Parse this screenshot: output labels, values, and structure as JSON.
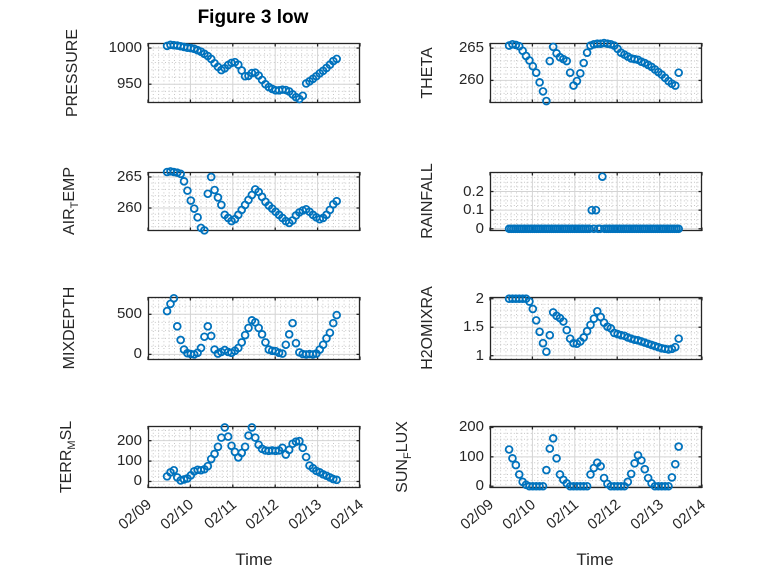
{
  "title": "Figure 3 low",
  "marker_color": "#0072BD",
  "axis_color": "#262626",
  "time_axis": {
    "label": "Time",
    "ticks": [
      "02/09",
      "02/10",
      "02/11",
      "02/12",
      "02/13",
      "02/14"
    ]
  },
  "chart_data": [
    {
      "type": "scatter",
      "name": "PRESSURE",
      "ylabel_pre": "PRESSURE",
      "ylabel_sub": "",
      "ylabel_post": "",
      "row": 0,
      "col": 0,
      "xlim": [
        0,
        5
      ],
      "ylim": [
        924,
        1007
      ],
      "yticks": [
        950,
        1000
      ],
      "y_minor_step": 10,
      "x_minor_step": 0.125,
      "x": [
        0.45,
        0.53,
        0.61,
        0.69,
        0.77,
        0.85,
        0.93,
        1.01,
        1.09,
        1.17,
        1.25,
        1.33,
        1.41,
        1.49,
        1.57,
        1.65,
        1.73,
        1.81,
        1.89,
        1.97,
        2.05,
        2.13,
        2.21,
        2.29,
        2.37,
        2.45,
        2.53,
        2.61,
        2.69,
        2.77,
        2.85,
        2.93,
        3.01,
        3.09,
        3.17,
        3.25,
        3.33,
        3.41,
        3.49,
        3.57,
        3.65,
        3.73,
        3.81,
        3.89,
        3.97,
        4.05,
        4.13,
        4.21,
        4.29,
        4.37,
        4.45
      ],
      "y": [
        1003,
        1004.5,
        1004,
        1003.5,
        1002.5,
        1001.5,
        1000.5,
        1000,
        999,
        997,
        995,
        992,
        989,
        985,
        979,
        974,
        969.5,
        972,
        976.5,
        979.5,
        980.5,
        977,
        969,
        961,
        961.5,
        965.5,
        966,
        962,
        956,
        950,
        946,
        943.5,
        941.5,
        941.5,
        942.5,
        942,
        940,
        936,
        932,
        929.5,
        934,
        951,
        954,
        957.5,
        961,
        965,
        968.5,
        972.5,
        977,
        982,
        985
      ]
    },
    {
      "type": "scatter",
      "name": "THETA",
      "ylabel_pre": "THETA",
      "ylabel_sub": "",
      "ylabel_post": "",
      "row": 0,
      "col": 1,
      "xlim": [
        0,
        5
      ],
      "ylim": [
        256.5,
        265.8
      ],
      "yticks": [
        260,
        265
      ],
      "y_minor_step": 1,
      "x_minor_step": 0.125,
      "x": [
        0.45,
        0.53,
        0.61,
        0.69,
        0.77,
        0.85,
        0.93,
        1.01,
        1.09,
        1.17,
        1.25,
        1.33,
        1.41,
        1.49,
        1.57,
        1.65,
        1.73,
        1.81,
        1.89,
        1.97,
        2.05,
        2.13,
        2.21,
        2.29,
        2.37,
        2.45,
        2.53,
        2.61,
        2.69,
        2.77,
        2.85,
        2.93,
        3.01,
        3.09,
        3.17,
        3.25,
        3.33,
        3.41,
        3.49,
        3.57,
        3.65,
        3.73,
        3.81,
        3.89,
        3.97,
        4.05,
        4.13,
        4.21,
        4.29,
        4.37,
        4.45
      ],
      "y": [
        265.4,
        265.6,
        265.5,
        265.3,
        264.6,
        263.8,
        263.1,
        262.2,
        261.2,
        259.7,
        258.3,
        256.8,
        263.0,
        265.2,
        264.2,
        263.6,
        263.3,
        263.0,
        261.2,
        259.2,
        259.9,
        261.1,
        262.7,
        264.3,
        265.4,
        265.6,
        265.7,
        265.7,
        265.8,
        265.7,
        265.6,
        265.4,
        264.9,
        264.3,
        264.0,
        263.7,
        263.4,
        263.3,
        263.2,
        262.9,
        262.7,
        262.4,
        262.1,
        261.7,
        261.3,
        260.9,
        260.4,
        259.9,
        259.5,
        259.2,
        261.2
      ]
    },
    {
      "type": "scatter",
      "name": "AIR_TEMP",
      "ylabel_pre": "AIR",
      "ylabel_sub": "T",
      "ylabel_post": "EMP",
      "row": 1,
      "col": 0,
      "xlim": [
        0,
        5
      ],
      "ylim": [
        256.3,
        265.8
      ],
      "yticks": [
        260,
        265
      ],
      "y_minor_step": 1,
      "x_minor_step": 0.125,
      "x": [
        0.45,
        0.53,
        0.61,
        0.69,
        0.77,
        0.85,
        0.93,
        1.01,
        1.09,
        1.17,
        1.25,
        1.33,
        1.41,
        1.49,
        1.57,
        1.65,
        1.73,
        1.81,
        1.89,
        1.97,
        2.05,
        2.13,
        2.21,
        2.29,
        2.37,
        2.45,
        2.53,
        2.61,
        2.69,
        2.77,
        2.85,
        2.93,
        3.01,
        3.09,
        3.17,
        3.25,
        3.33,
        3.41,
        3.49,
        3.57,
        3.65,
        3.73,
        3.81,
        3.89,
        3.97,
        4.05,
        4.13,
        4.21,
        4.29,
        4.37,
        4.45
      ],
      "y": [
        265.8,
        265.9,
        265.8,
        265.7,
        265.5,
        264.3,
        262.8,
        261.2,
        259.9,
        258.5,
        256.8,
        256.4,
        262.3,
        265.0,
        262.9,
        261.7,
        260.5,
        258.9,
        258.4,
        257.9,
        258.2,
        258.9,
        259.7,
        260.5,
        261.3,
        262.1,
        263.0,
        262.6,
        261.8,
        261.0,
        260.4,
        259.9,
        259.4,
        258.9,
        258.4,
        257.9,
        257.6,
        258.0,
        258.8,
        259.3,
        259.6,
        259.8,
        259.4,
        258.9,
        258.5,
        258.2,
        258.4,
        258.9,
        259.7,
        260.6,
        261.1
      ]
    },
    {
      "type": "scatter",
      "name": "RAINFALL",
      "ylabel_pre": "RAINFALL",
      "ylabel_sub": "",
      "ylabel_post": "",
      "row": 1,
      "col": 1,
      "xlim": [
        0,
        5
      ],
      "ylim": [
        -0.012,
        0.305
      ],
      "yticks": [
        0,
        0.1,
        0.2
      ],
      "y_minor_step": 0.025,
      "x_minor_step": 0.125,
      "x": [
        0.45,
        0.5,
        0.55,
        0.6,
        0.65,
        0.7,
        0.75,
        0.8,
        0.85,
        0.9,
        0.95,
        1.0,
        1.05,
        1.1,
        1.15,
        1.2,
        1.25,
        1.3,
        1.35,
        1.4,
        1.45,
        1.5,
        1.55,
        1.6,
        1.65,
        1.7,
        1.75,
        1.8,
        1.85,
        1.9,
        1.95,
        2.0,
        2.05,
        2.1,
        2.15,
        2.2,
        2.25,
        2.3,
        2.35,
        2.4,
        2.45,
        2.5,
        2.55,
        2.6,
        2.65,
        2.7,
        2.75,
        2.8,
        2.85,
        2.9,
        2.95,
        3.0,
        3.05,
        3.1,
        3.15,
        3.2,
        3.25,
        3.3,
        3.35,
        3.4,
        3.45,
        3.5,
        3.55,
        3.6,
        3.65,
        3.7,
        3.75,
        3.8,
        3.85,
        3.9,
        3.95,
        4.0,
        4.05,
        4.1,
        4.15,
        4.2,
        4.25,
        4.3,
        4.35,
        4.4,
        4.45
      ],
      "y": [
        0,
        0,
        0,
        0,
        0,
        0,
        0,
        0,
        0,
        0,
        0,
        0,
        0,
        0,
        0,
        0,
        0,
        0,
        0,
        0,
        0,
        0,
        0,
        0,
        0,
        0,
        0,
        0,
        0,
        0,
        0,
        0,
        0,
        0,
        0,
        0,
        0,
        0,
        0,
        0.1,
        0,
        0.1,
        0,
        0,
        0.28,
        0,
        0,
        0,
        0,
        0,
        0,
        0,
        0,
        0,
        0,
        0,
        0,
        0,
        0,
        0,
        0,
        0,
        0,
        0,
        0,
        0,
        0,
        0,
        0,
        0,
        0,
        0,
        0,
        0,
        0,
        0,
        0,
        0,
        0,
        0,
        0
      ]
    },
    {
      "type": "scatter",
      "name": "MIXDEPTH",
      "ylabel_pre": "MIXDEPTH",
      "ylabel_sub": "",
      "ylabel_post": "",
      "row": 2,
      "col": 0,
      "xlim": [
        0,
        5
      ],
      "ylim": [
        -70,
        716
      ],
      "yticks": [
        0,
        500
      ],
      "y_minor_step": 100,
      "x_minor_step": 0.125,
      "x": [
        0.45,
        0.53,
        0.61,
        0.69,
        0.77,
        0.85,
        0.93,
        1.01,
        1.09,
        1.17,
        1.25,
        1.33,
        1.41,
        1.49,
        1.57,
        1.65,
        1.73,
        1.81,
        1.89,
        1.97,
        2.05,
        2.13,
        2.21,
        2.29,
        2.37,
        2.45,
        2.53,
        2.61,
        2.69,
        2.77,
        2.85,
        2.93,
        3.01,
        3.09,
        3.17,
        3.25,
        3.33,
        3.41,
        3.49,
        3.57,
        3.65,
        3.73,
        3.81,
        3.89,
        3.97,
        4.05,
        4.13,
        4.21,
        4.29,
        4.37,
        4.45
      ],
      "y": [
        540,
        630,
        700,
        350,
        180,
        60,
        15,
        5,
        0,
        20,
        80,
        220,
        350,
        230,
        60,
        10,
        30,
        55,
        30,
        20,
        45,
        80,
        150,
        240,
        330,
        425,
        400,
        330,
        250,
        150,
        60,
        45,
        40,
        20,
        10,
        120,
        250,
        390,
        140,
        25,
        5,
        0,
        5,
        0,
        10,
        60,
        120,
        200,
        270,
        390,
        490
      ]
    },
    {
      "type": "scatter",
      "name": "H2OMIXRA",
      "ylabel_pre": "H2OMIXRA",
      "ylabel_sub": "",
      "ylabel_post": "",
      "row": 2,
      "col": 1,
      "xlim": [
        0,
        5
      ],
      "ylim": [
        0.925,
        2.03
      ],
      "yticks": [
        1,
        1.5,
        2
      ],
      "y_minor_step": 0.1,
      "x_minor_step": 0.125,
      "x": [
        0.45,
        0.53,
        0.61,
        0.69,
        0.77,
        0.85,
        0.93,
        1.01,
        1.09,
        1.17,
        1.25,
        1.33,
        1.41,
        1.49,
        1.57,
        1.65,
        1.73,
        1.81,
        1.89,
        1.97,
        2.05,
        2.13,
        2.21,
        2.29,
        2.37,
        2.45,
        2.53,
        2.61,
        2.69,
        2.77,
        2.85,
        2.93,
        3.01,
        3.09,
        3.17,
        3.25,
        3.33,
        3.41,
        3.49,
        3.57,
        3.65,
        3.73,
        3.81,
        3.89,
        3.97,
        4.05,
        4.13,
        4.21,
        4.29,
        4.37,
        4.45
      ],
      "y": [
        2.0,
        2.0,
        2.0,
        2.0,
        2.0,
        2.0,
        1.95,
        1.82,
        1.62,
        1.42,
        1.22,
        1.07,
        1.36,
        1.76,
        1.7,
        1.66,
        1.6,
        1.45,
        1.3,
        1.22,
        1.21,
        1.25,
        1.32,
        1.43,
        1.54,
        1.65,
        1.78,
        1.68,
        1.58,
        1.51,
        1.48,
        1.4,
        1.38,
        1.36,
        1.35,
        1.32,
        1.3,
        1.28,
        1.27,
        1.25,
        1.23,
        1.21,
        1.19,
        1.17,
        1.15,
        1.13,
        1.12,
        1.11,
        1.12,
        1.15,
        1.3
      ]
    },
    {
      "type": "scatter",
      "name": "TERR_MSL",
      "ylabel_pre": "TERR",
      "ylabel_sub": "M",
      "ylabel_post": "SL",
      "row": 3,
      "col": 0,
      "xlim": [
        0,
        5
      ],
      "ylim": [
        -32,
        272
      ],
      "yticks": [
        0,
        100,
        200
      ],
      "y_minor_step": 25,
      "x_minor_step": 0.125,
      "x": [
        0.45,
        0.53,
        0.61,
        0.69,
        0.77,
        0.85,
        0.93,
        1.01,
        1.09,
        1.17,
        1.25,
        1.33,
        1.41,
        1.49,
        1.57,
        1.65,
        1.73,
        1.81,
        1.89,
        1.97,
        2.05,
        2.13,
        2.21,
        2.29,
        2.37,
        2.45,
        2.53,
        2.61,
        2.69,
        2.77,
        2.85,
        2.93,
        3.01,
        3.09,
        3.17,
        3.25,
        3.33,
        3.41,
        3.49,
        3.57,
        3.65,
        3.73,
        3.81,
        3.89,
        3.97,
        4.05,
        4.13,
        4.21,
        4.29,
        4.37,
        4.45
      ],
      "y": [
        25,
        45,
        55,
        20,
        5,
        10,
        15,
        30,
        50,
        57,
        55,
        60,
        75,
        110,
        135,
        170,
        215,
        265,
        220,
        175,
        145,
        118,
        140,
        170,
        225,
        265,
        215,
        180,
        160,
        152,
        150,
        152,
        150,
        152,
        165,
        132,
        155,
        185,
        195,
        198,
        165,
        120,
        78,
        65,
        52,
        45,
        35,
        28,
        20,
        12,
        8
      ]
    },
    {
      "type": "scatter",
      "name": "SUN_FLUX",
      "ylabel_pre": "SUN",
      "ylabel_sub": "F",
      "ylabel_post": "LUX",
      "row": 3,
      "col": 1,
      "xlim": [
        0,
        5
      ],
      "ylim": [
        -6,
        205
      ],
      "yticks": [
        0,
        100,
        200
      ],
      "y_minor_step": 20,
      "x_minor_step": 0.125,
      "x": [
        0.45,
        0.53,
        0.61,
        0.69,
        0.77,
        0.85,
        0.93,
        1.01,
        1.09,
        1.17,
        1.25,
        1.33,
        1.41,
        1.49,
        1.57,
        1.65,
        1.73,
        1.81,
        1.89,
        1.97,
        2.05,
        2.13,
        2.21,
        2.29,
        2.37,
        2.45,
        2.53,
        2.61,
        2.69,
        2.77,
        2.85,
        2.93,
        3.01,
        3.09,
        3.17,
        3.25,
        3.33,
        3.41,
        3.49,
        3.57,
        3.65,
        3.73,
        3.81,
        3.89,
        3.97,
        4.05,
        4.13,
        4.21,
        4.29,
        4.37,
        4.45
      ],
      "y": [
        125,
        95,
        72,
        40,
        15,
        5,
        0,
        0,
        0,
        0,
        0,
        55,
        128,
        163,
        95,
        40,
        22,
        10,
        0,
        0,
        0,
        0,
        0,
        0,
        40,
        62,
        80,
        68,
        28,
        8,
        0,
        0,
        0,
        0,
        0,
        15,
        42,
        78,
        105,
        88,
        58,
        28,
        10,
        0,
        0,
        0,
        0,
        0,
        30,
        75,
        135
      ]
    }
  ]
}
